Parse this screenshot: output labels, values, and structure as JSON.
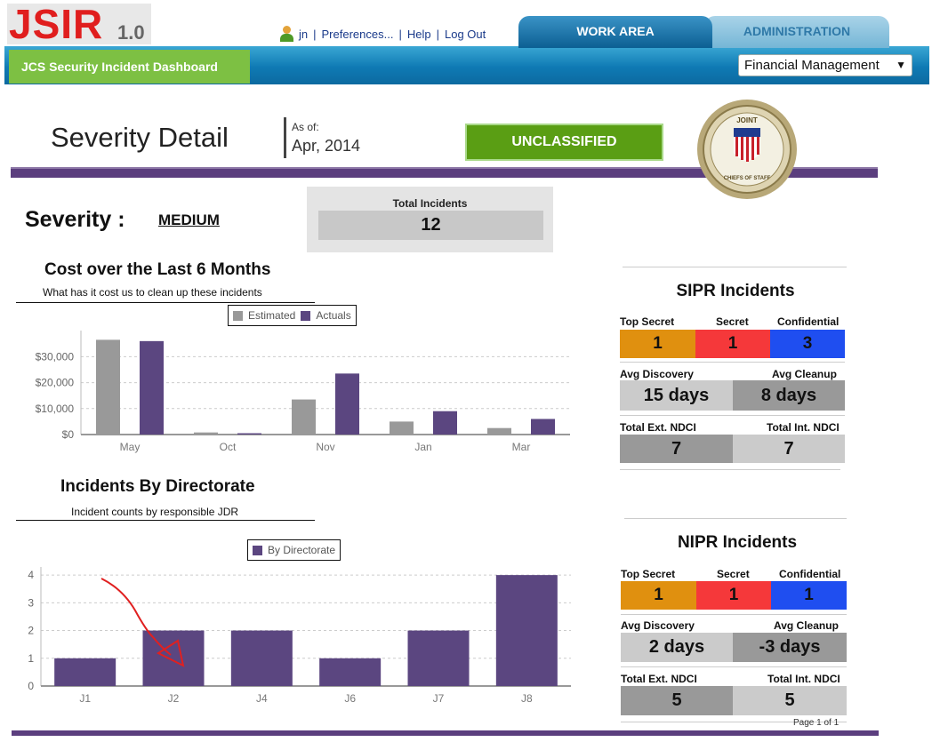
{
  "header": {
    "logo_main": "JSIR",
    "logo_version": "1.0",
    "user": "jn",
    "links": [
      "Preferences...",
      "Help",
      "Log Out"
    ],
    "tabs": [
      {
        "label": "WORK AREA",
        "active": true
      },
      {
        "label": "ADMINISTRATION",
        "active": false
      }
    ],
    "dashboard_label": "JCS Security Incident Dashboard",
    "org_select": "Financial Management"
  },
  "page": {
    "title": "Severity Detail",
    "asof_label": "As of:",
    "asof_value": "Apr, 2014",
    "classification": "UNCLASSIFIED",
    "severity_label": "Severity :",
    "severity_value": "MEDIUM",
    "total_label": "Total Incidents",
    "total_value": "12",
    "page_info": "Page 1 of 1"
  },
  "seal": {
    "text_top": "JOINT",
    "text_bottom": "CHIEFS OF STAFF"
  },
  "charts": {
    "cost": {
      "title": "Cost over the Last 6 Months",
      "subtitle": "What has it cost us to clean up these incidents"
    },
    "directorate": {
      "title": "Incidents By Directorate",
      "subtitle": "Incident counts by responsible JDR"
    }
  },
  "chart_data": [
    {
      "type": "bar",
      "categories": [
        "May",
        "Oct",
        "Nov",
        "Jan",
        "Mar"
      ],
      "series": [
        {
          "name": "Estimated",
          "values": [
            36500,
            800,
            13500,
            5000,
            2500
          ]
        },
        {
          "name": "Actuals",
          "values": [
            36000,
            500,
            23500,
            9000,
            6000
          ]
        }
      ],
      "ylim": [
        0,
        38000
      ],
      "yticks": [
        "$0",
        "$10,000",
        "$20,000",
        "$30,000"
      ],
      "ytick_values": [
        0,
        10000,
        20000,
        30000
      ],
      "colors": {
        "Estimated": "#999999",
        "Actuals": "#5b4680"
      },
      "grid": true,
      "legend": "top-right"
    },
    {
      "type": "bar",
      "categories": [
        "J1",
        "J2",
        "J4",
        "J6",
        "J7",
        "J8"
      ],
      "series": [
        {
          "name": "By Directorate",
          "values": [
            1,
            2,
            2,
            1,
            2,
            4
          ]
        }
      ],
      "ylim": [
        0,
        4.1
      ],
      "yticks": [
        "0",
        "1",
        "2",
        "3",
        "4"
      ],
      "ytick_values": [
        0,
        1,
        2,
        3,
        4
      ],
      "colors": {
        "By Directorate": "#5b4680"
      },
      "grid": true,
      "legend": "top-center"
    }
  ],
  "sipr": {
    "title": "SIPR Incidents",
    "classes": [
      {
        "label": "Top Secret",
        "value": "1",
        "color": "#e0900f"
      },
      {
        "label": "Secret",
        "value": "1",
        "color": "#f5383a"
      },
      {
        "label": "Confidential",
        "value": "3",
        "color": "#1f4ef0"
      }
    ],
    "avg_discovery_label": "Avg Discovery",
    "avg_discovery": "15 days",
    "avg_cleanup_label": "Avg Cleanup",
    "avg_cleanup": "8 days",
    "ext_label": "Total Ext. NDCI",
    "ext_value": "7",
    "int_label": "Total Int. NDCI",
    "int_value": "7"
  },
  "nipr": {
    "title": "NIPR Incidents",
    "classes": [
      {
        "label": "Top Secret",
        "value": "1",
        "color": "#e0900f"
      },
      {
        "label": "Secret",
        "value": "1",
        "color": "#f5383a"
      },
      {
        "label": "Confidential",
        "value": "1",
        "color": "#1f4ef0"
      }
    ],
    "avg_discovery_label": "Avg Discovery",
    "avg_discovery": "2 days",
    "avg_cleanup_label": "Avg Cleanup",
    "avg_cleanup": "-3 days",
    "ext_label": "Total Ext. NDCI",
    "ext_value": "5",
    "int_label": "Total Int. NDCI",
    "int_value": "5"
  }
}
